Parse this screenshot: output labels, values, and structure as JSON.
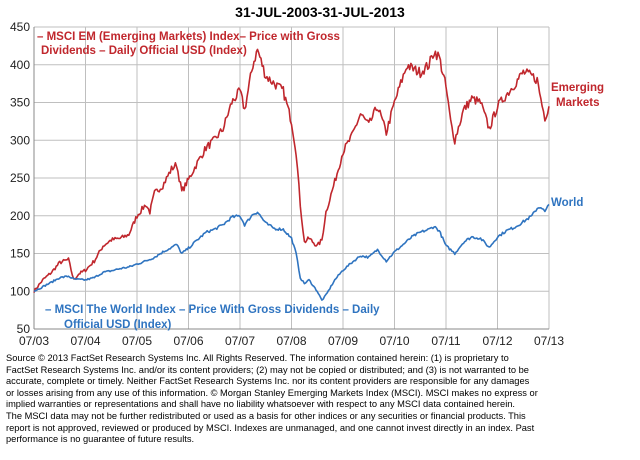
{
  "chart_data": {
    "type": "line",
    "title": "31-JUL-2003-31-JUL-2013",
    "xlabel": "",
    "ylabel": "",
    "xlim": [
      2003.58,
      2013.58
    ],
    "ylim": [
      50,
      450
    ],
    "yticks": [
      "50",
      "100",
      "150",
      "200",
      "250",
      "300",
      "350",
      "400",
      "450"
    ],
    "xticks": [
      "07/03",
      "07/04",
      "07/05",
      "07/06",
      "07/07",
      "07/08",
      "07/09",
      "07/10",
      "07/11",
      "07/12",
      "07/13"
    ],
    "grid": true,
    "colors": {
      "em": "#c0272d",
      "world": "#2f74c0",
      "grid": "#bfbfbf"
    },
    "series": [
      {
        "name": "Emerging Markets",
        "label": [
          "Emerging",
          "Markets"
        ],
        "annotation": [
          "– MSCI EM (Emerging Markets) Index– Price with Gross",
          "Dividends – Daily Official USD (Index)"
        ],
        "x": [
          2003.58,
          2003.75,
          2003.92,
          2004.08,
          2004.25,
          2004.35,
          2004.45,
          2004.58,
          2004.75,
          2004.92,
          2005.08,
          2005.25,
          2005.42,
          2005.58,
          2005.75,
          2005.83,
          2005.92,
          2006.08,
          2006.25,
          2006.35,
          2006.45,
          2006.58,
          2006.75,
          2006.92,
          2007.08,
          2007.25,
          2007.42,
          2007.58,
          2007.67,
          2007.83,
          2007.92,
          2008.08,
          2008.25,
          2008.42,
          2008.58,
          2008.67,
          2008.75,
          2008.83,
          2008.92,
          2009.08,
          2009.17,
          2009.25,
          2009.42,
          2009.58,
          2009.75,
          2009.92,
          2010.08,
          2010.25,
          2010.42,
          2010.58,
          2010.75,
          2010.83,
          2010.92,
          2011.08,
          2011.25,
          2011.35,
          2011.45,
          2011.58,
          2011.67,
          2011.75,
          2011.92,
          2012.08,
          2012.25,
          2012.42,
          2012.58,
          2012.75,
          2012.92,
          2013.08,
          2013.25,
          2013.35,
          2013.42,
          2013.5,
          2013.58
        ],
        "values": [
          100,
          115,
          125,
          138,
          142,
          115,
          123,
          128,
          140,
          160,
          168,
          170,
          175,
          200,
          215,
          205,
          230,
          240,
          262,
          268,
          232,
          248,
          270,
          290,
          300,
          315,
          350,
          365,
          340,
          400,
          420,
          385,
          375,
          365,
          325,
          285,
          215,
          165,
          170,
          160,
          168,
          205,
          245,
          285,
          305,
          335,
          320,
          345,
          310,
          350,
          385,
          400,
          395,
          390,
          400,
          418,
          410,
          370,
          325,
          300,
          340,
          355,
          350,
          315,
          345,
          360,
          375,
          390,
          385,
          380,
          355,
          330,
          345
        ]
      },
      {
        "name": "World",
        "label": [
          "World"
        ],
        "annotation": [
          "– MSCI The World Index – Price With Gross Dividends – Daily",
          "Official USD (Index)"
        ],
        "x": [
          2003.58,
          2003.75,
          2003.92,
          2004.08,
          2004.25,
          2004.35,
          2004.58,
          2004.75,
          2004.92,
          2005.08,
          2005.25,
          2005.42,
          2005.58,
          2005.75,
          2005.92,
          2006.08,
          2006.25,
          2006.35,
          2006.45,
          2006.58,
          2006.75,
          2006.92,
          2007.08,
          2007.25,
          2007.42,
          2007.58,
          2007.67,
          2007.83,
          2007.92,
          2008.08,
          2008.25,
          2008.42,
          2008.58,
          2008.67,
          2008.75,
          2008.83,
          2008.92,
          2009.08,
          2009.17,
          2009.25,
          2009.42,
          2009.58,
          2009.75,
          2009.92,
          2010.08,
          2010.25,
          2010.42,
          2010.58,
          2010.75,
          2010.92,
          2011.08,
          2011.25,
          2011.35,
          2011.45,
          2011.58,
          2011.67,
          2011.75,
          2011.92,
          2012.08,
          2012.25,
          2012.42,
          2012.58,
          2012.75,
          2012.92,
          2013.08,
          2013.25,
          2013.35,
          2013.42,
          2013.5,
          2013.58
        ],
        "values": [
          100,
          106,
          112,
          118,
          120,
          116,
          115,
          118,
          125,
          127,
          130,
          132,
          136,
          140,
          145,
          152,
          158,
          162,
          150,
          157,
          168,
          178,
          182,
          188,
          198,
          200,
          188,
          202,
          205,
          190,
          183,
          182,
          170,
          150,
          118,
          110,
          115,
          100,
          88,
          95,
          115,
          128,
          138,
          147,
          145,
          155,
          140,
          152,
          162,
          172,
          178,
          182,
          186,
          180,
          160,
          155,
          150,
          165,
          172,
          170,
          158,
          172,
          180,
          185,
          192,
          200,
          210,
          212,
          205,
          215
        ]
      }
    ]
  },
  "source_note": [
    "Source © 2013 FactSet Research Systems Inc. All Rights Reserved. The information contained herein:  (1) is proprietary to",
    "FactSet Research Systems Inc. and/or its content providers; (2) may not be copied or distributed; and (3) is not warranted to be",
    "accurate, complete or timely. Neither FactSet Research Systems Inc. nor its content providers are responsible for any damages",
    "or losses arising from any use of this information. © Morgan Stanley Emerging Markets Index (MSCI).  MSCI makes no express or",
    "implied warranties or representations and shall have no liability whatsoever with respect to any MSCI data contained herein.",
    "The MSCI data may not be further redistributed or used as a basis for other indices or any securities or financial products. This",
    "report is not approved, reviewed or produced by MSCI. Indexes are unmanaged, and one cannot invest directly in an index. Past",
    "performance is no guarantee of future results."
  ]
}
